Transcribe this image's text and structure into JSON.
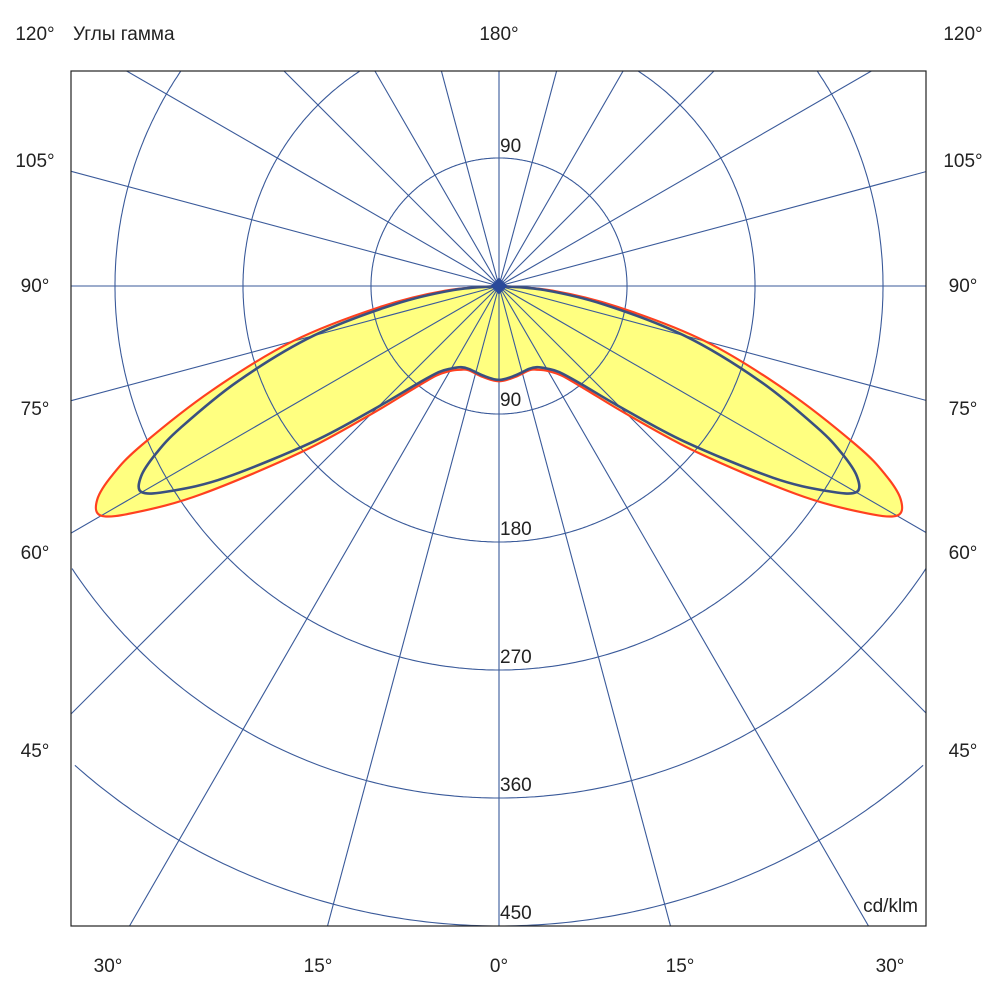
{
  "chart_data": {
    "type": "polar",
    "title": "Углы гамма",
    "unit_label": "cd/klm",
    "radial_ticks": [
      90,
      180,
      270,
      360,
      450
    ],
    "rlim": [
      0,
      450
    ],
    "angle_step_deg": 15,
    "angle_labels": {
      "top": "180°",
      "top_left": "120°",
      "top_right": "120°",
      "left": [
        "105°",
        "90°",
        "75°",
        "60°",
        "45°"
      ],
      "right": [
        "105°",
        "90°",
        "75°",
        "60°",
        "45°"
      ],
      "bottom": [
        "30°",
        "15°",
        "0°",
        "15°",
        "30°"
      ]
    },
    "colors": {
      "grid": "#3a5a9a",
      "fill": "#ffff80",
      "series_outer": "#ff4020",
      "series_inner": "#3a5080"
    },
    "gamma": [
      0,
      10,
      20,
      25,
      30,
      35,
      40,
      45,
      50,
      55,
      58,
      60,
      62,
      64,
      66,
      70,
      75,
      80,
      85,
      90
    ],
    "series": [
      {
        "values": [
          67,
          65,
          63,
          65,
          69,
          77,
          95,
          128,
          182,
          255,
          300,
          323,
          320,
          302,
          275,
          215,
          150,
          85,
          38,
          0
        ]
      },
      {
        "values": [
          66,
          64,
          62,
          63,
          67,
          74,
          90,
          120,
          170,
          235,
          272,
          290,
          285,
          268,
          245,
          195,
          135,
          75,
          32,
          0
        ]
      }
    ]
  }
}
